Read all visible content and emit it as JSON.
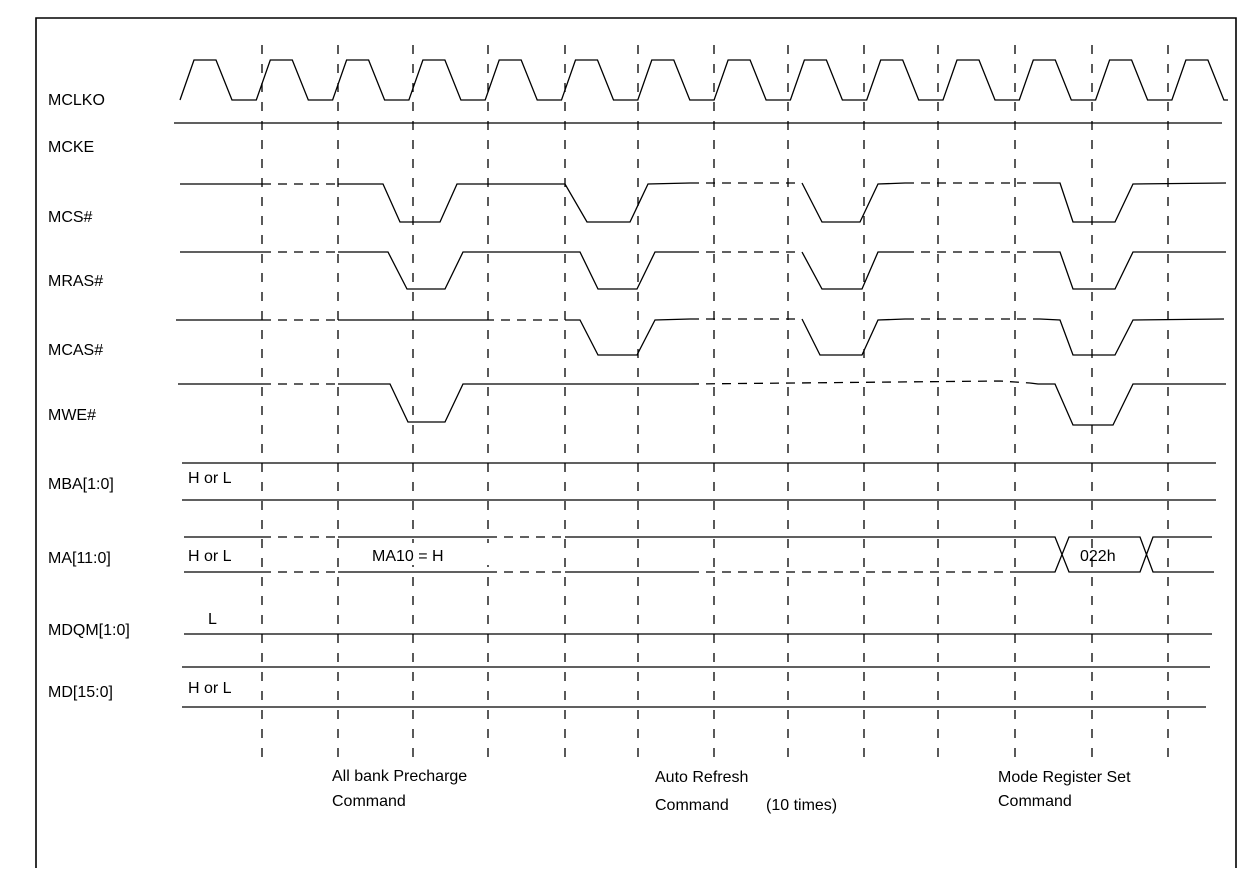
{
  "signals": {
    "mclko": "MCLKO",
    "mcke": "MCKE",
    "mcs": "MCS#",
    "mras": "MRAS#",
    "mcas": "MCAS#",
    "mwe": "MWE#",
    "mba": "MBA[1:0]",
    "ma": "MA[11:0]",
    "mdqm": "MDQM[1:0]",
    "md": "MD[15:0]"
  },
  "values": {
    "mba": "H or L",
    "ma": "H or L",
    "ma10": "MA10 = H",
    "ma_mode": "022h",
    "mdqm": "L",
    "md": "H or L"
  },
  "commands": {
    "precharge_line1": "All bank Precharge",
    "precharge_line2": "Command",
    "refresh_line1": "Auto Refresh",
    "refresh_line2": "Command",
    "refresh_times": "(10 times)",
    "mrs_line1": "Mode Register Set",
    "mrs_line2": "Command"
  }
}
